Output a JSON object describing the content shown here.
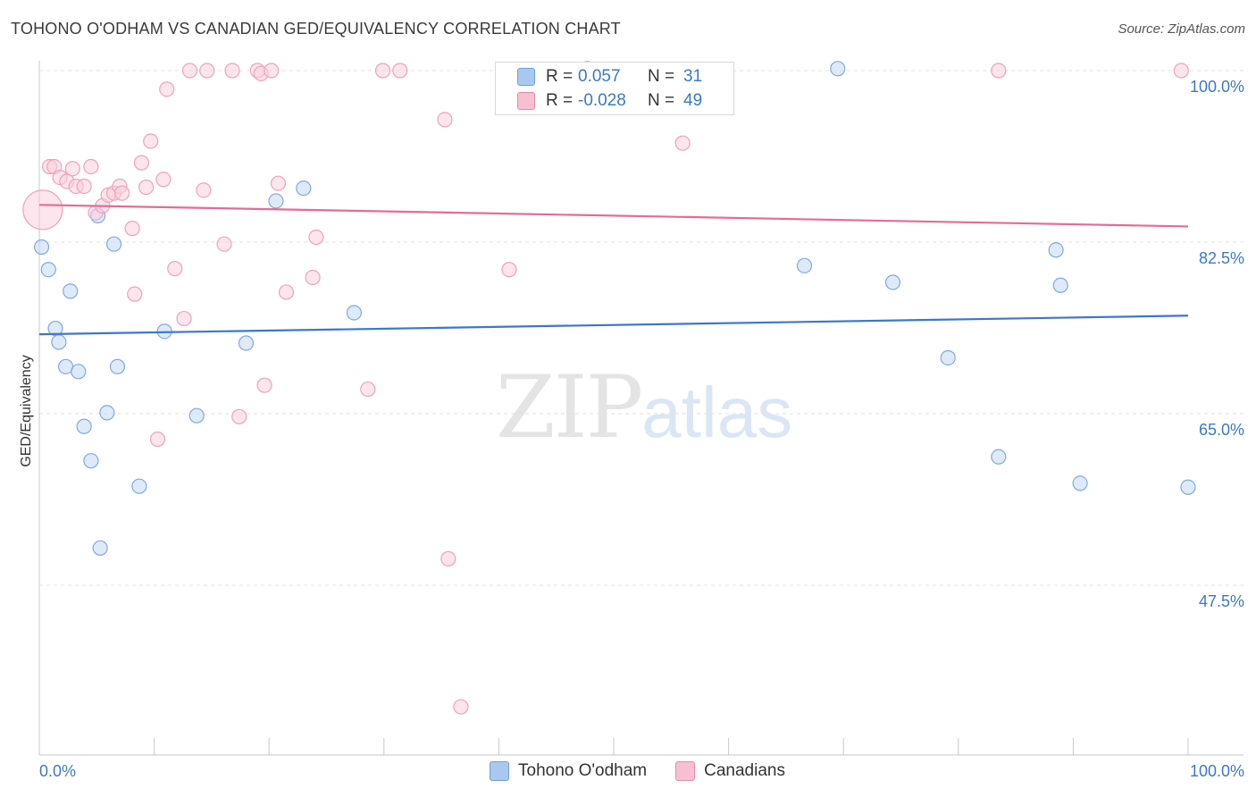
{
  "title": "TOHONO O'ODHAM VS CANADIAN GED/EQUIVALENCY CORRELATION CHART",
  "source": "Source: ZipAtlas.com",
  "watermark": {
    "zip": "ZIP",
    "atlas": "atlas"
  },
  "legend": {
    "rows": [
      {
        "r_label": "R =",
        "r_value": "0.057",
        "n_label": "N =",
        "n_value": "31",
        "color": "#a9c8f0",
        "border": "#6f9fde"
      },
      {
        "r_label": "R =",
        "r_value": "-0.028",
        "n_label": "N =",
        "n_value": "49",
        "color": "#f7c0d0",
        "border": "#e98aa8"
      }
    ]
  },
  "bottom_legend": [
    "Tohono O'odham",
    "Canadians"
  ],
  "chart_data": {
    "type": "scatter",
    "title": "TOHONO O'ODHAM VS CANADIAN GED/EQUIVALENCY CORRELATION CHART",
    "xlabel": "",
    "ylabel": "GED/Equivalency",
    "xlim": [
      0,
      100
    ],
    "ylim": [
      31,
      102
    ],
    "x_tick_labels": [
      "0.0%",
      "100.0%"
    ],
    "y_ticks": [
      47.5,
      65.0,
      82.5,
      100.0
    ],
    "y_tick_labels": [
      "47.5%",
      "65.0%",
      "82.5%",
      "100.0%"
    ],
    "grid": true,
    "colors": {
      "blue": "#3b78c9",
      "blue_fill": "#c3d8f3",
      "pink": "#e56b95",
      "pink_fill": "#f9cfdc"
    },
    "series": [
      {
        "name": "Tohono O'odham",
        "color": "#3b78c9",
        "trend": [
          [
            0,
            73.1
          ],
          [
            100,
            75.0
          ]
        ],
        "points": [
          [
            0.2,
            82.0
          ],
          [
            0.8,
            79.7
          ],
          [
            1.4,
            73.7
          ],
          [
            1.7,
            72.3
          ],
          [
            2.3,
            69.8
          ],
          [
            2.7,
            77.5
          ],
          [
            3.4,
            69.3
          ],
          [
            3.9,
            63.7
          ],
          [
            4.5,
            60.2
          ],
          [
            5.1,
            85.2
          ],
          [
            5.3,
            51.3
          ],
          [
            5.9,
            65.1
          ],
          [
            6.5,
            82.3
          ],
          [
            6.8,
            69.8
          ],
          [
            8.7,
            57.6
          ],
          [
            10.9,
            73.4
          ],
          [
            13.7,
            64.8
          ],
          [
            18.0,
            72.2
          ],
          [
            20.6,
            86.7
          ],
          [
            23.0,
            88.0
          ],
          [
            27.4,
            75.3
          ],
          [
            47.7,
            100.2
          ],
          [
            69.5,
            100.2
          ],
          [
            66.6,
            80.1
          ],
          [
            74.3,
            78.4
          ],
          [
            79.1,
            70.7
          ],
          [
            83.5,
            60.6
          ],
          [
            88.5,
            81.7
          ],
          [
            88.9,
            78.1
          ],
          [
            90.6,
            57.9
          ],
          [
            100.0,
            57.5
          ]
        ]
      },
      {
        "name": "Canadians",
        "color": "#e56b95",
        "trend": [
          [
            0,
            86.3
          ],
          [
            100,
            84.1
          ]
        ],
        "points": [
          [
            0.3,
            85.8
          ],
          [
            0.9,
            90.2
          ],
          [
            1.3,
            90.2
          ],
          [
            1.8,
            89.1
          ],
          [
            2.4,
            88.7
          ],
          [
            2.9,
            90.0
          ],
          [
            3.2,
            88.2
          ],
          [
            3.9,
            88.2
          ],
          [
            4.5,
            90.2
          ],
          [
            4.9,
            85.5
          ],
          [
            5.5,
            86.2
          ],
          [
            6.0,
            87.3
          ],
          [
            6.5,
            87.5
          ],
          [
            7.0,
            88.2
          ],
          [
            7.2,
            87.5
          ],
          [
            8.1,
            83.9
          ],
          [
            8.3,
            77.2
          ],
          [
            8.9,
            90.6
          ],
          [
            9.3,
            88.1
          ],
          [
            9.7,
            92.8
          ],
          [
            10.3,
            62.4
          ],
          [
            10.8,
            88.9
          ],
          [
            11.1,
            98.1
          ],
          [
            11.8,
            79.8
          ],
          [
            12.6,
            74.7
          ],
          [
            13.1,
            100.0
          ],
          [
            14.3,
            87.8
          ],
          [
            14.6,
            100.0
          ],
          [
            16.1,
            82.3
          ],
          [
            16.8,
            100.0
          ],
          [
            17.4,
            64.7
          ],
          [
            19.0,
            100.0
          ],
          [
            19.3,
            99.7
          ],
          [
            19.6,
            67.9
          ],
          [
            20.2,
            100.0
          ],
          [
            20.8,
            88.5
          ],
          [
            21.5,
            77.4
          ],
          [
            23.8,
            78.9
          ],
          [
            24.1,
            83.0
          ],
          [
            28.6,
            67.5
          ],
          [
            29.9,
            100.0
          ],
          [
            31.4,
            100.0
          ],
          [
            35.3,
            95.0
          ],
          [
            35.6,
            50.2
          ],
          [
            36.7,
            35.1
          ],
          [
            40.9,
            79.7
          ],
          [
            56.0,
            92.6
          ],
          [
            83.5,
            100.0
          ],
          [
            99.4,
            100.0
          ]
        ]
      }
    ]
  }
}
